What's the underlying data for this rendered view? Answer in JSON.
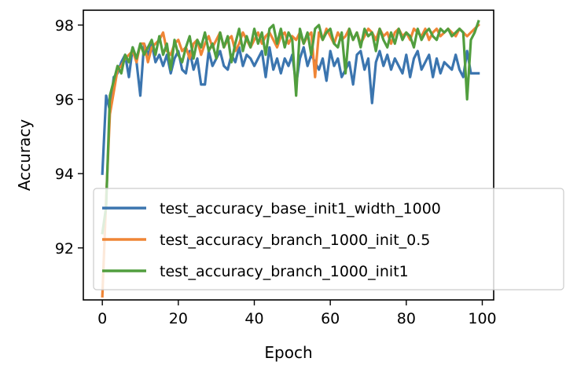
{
  "chart_data": {
    "type": "line",
    "title": "",
    "xlabel": "Epoch",
    "ylabel": "Accuracy",
    "xlim": [
      -5,
      103
    ],
    "ylim": [
      90.6,
      98.4
    ],
    "xticks": [
      0,
      20,
      40,
      60,
      80,
      100
    ],
    "yticks": [
      92,
      94,
      96,
      98
    ],
    "xtick_labels": [
      "0",
      "20",
      "40",
      "60",
      "80",
      "100"
    ],
    "ytick_labels": [
      "92",
      "94",
      "96",
      "98"
    ],
    "grid": false,
    "legend_position": "lower-left, overlapping plot edge",
    "x": [
      0,
      1,
      2,
      3,
      4,
      5,
      6,
      7,
      8,
      9,
      10,
      11,
      12,
      13,
      14,
      15,
      16,
      17,
      18,
      19,
      20,
      21,
      22,
      23,
      24,
      25,
      26,
      27,
      28,
      29,
      30,
      31,
      32,
      33,
      34,
      35,
      36,
      37,
      38,
      39,
      40,
      41,
      42,
      43,
      44,
      45,
      46,
      47,
      48,
      49,
      50,
      51,
      52,
      53,
      54,
      55,
      56,
      57,
      58,
      59,
      60,
      61,
      62,
      63,
      64,
      65,
      66,
      67,
      68,
      69,
      70,
      71,
      72,
      73,
      74,
      75,
      76,
      77,
      78,
      79,
      80,
      81,
      82,
      83,
      84,
      85,
      86,
      87,
      88,
      89,
      90,
      91,
      92,
      93,
      94,
      95,
      96,
      97,
      98,
      99
    ],
    "series": [
      {
        "name": "test_accuracy_base_init1_width_1000",
        "color": "#3b75af",
        "values": [
          94.0,
          96.1,
          95.7,
          96.6,
          96.7,
          97.0,
          97.2,
          96.6,
          97.4,
          97.0,
          96.1,
          97.5,
          97.2,
          97.5,
          97.0,
          97.2,
          96.9,
          97.2,
          96.7,
          97.1,
          97.3,
          96.8,
          96.7,
          97.3,
          96.8,
          97.1,
          96.4,
          96.4,
          97.3,
          96.9,
          97.1,
          97.3,
          96.9,
          96.8,
          97.2,
          97.0,
          97.4,
          96.9,
          97.2,
          97.1,
          96.9,
          97.1,
          97.3,
          96.6,
          97.4,
          96.8,
          97.1,
          96.7,
          97.1,
          96.9,
          97.2,
          96.4,
          97.1,
          97.4,
          96.9,
          97.2,
          97.0,
          96.8,
          97.1,
          96.5,
          97.3,
          96.9,
          97.1,
          96.6,
          96.8,
          97.0,
          96.4,
          97.2,
          97.3,
          96.8,
          97.1,
          95.9,
          97.0,
          97.3,
          96.9,
          97.2,
          96.8,
          97.1,
          96.9,
          96.7,
          97.2,
          96.6,
          97.1,
          97.3,
          96.8,
          97.0,
          97.2,
          96.6,
          97.1,
          96.7,
          97.0,
          96.9,
          96.8,
          97.2,
          96.8,
          96.6,
          97.3,
          96.7,
          96.7,
          96.7
        ]
      },
      {
        "name": "test_accuracy_branch_1000_init_0.5",
        "color": "#ef8536",
        "values": [
          90.7,
          93.3,
          95.6,
          96.2,
          96.8,
          96.9,
          97.1,
          97.2,
          97.3,
          97.0,
          97.5,
          97.5,
          97.0,
          97.4,
          97.5,
          97.6,
          97.8,
          97.3,
          97.2,
          97.5,
          97.6,
          97.3,
          97.4,
          97.1,
          97.5,
          97.6,
          97.2,
          97.5,
          97.7,
          97.4,
          97.6,
          97.8,
          97.4,
          97.6,
          97.7,
          97.3,
          97.5,
          97.8,
          97.6,
          97.4,
          97.6,
          97.8,
          97.5,
          97.7,
          97.8,
          97.6,
          97.4,
          97.7,
          97.8,
          97.5,
          97.7,
          97.6,
          97.8,
          97.5,
          97.7,
          97.8,
          96.6,
          97.8,
          97.6,
          97.9,
          97.7,
          97.5,
          97.8,
          97.6,
          97.7,
          97.9,
          97.6,
          97.8,
          97.5,
          97.7,
          97.9,
          97.8,
          97.6,
          97.9,
          97.7,
          97.8,
          97.5,
          97.8,
          97.9,
          97.7,
          97.8,
          97.6,
          97.9,
          97.8,
          97.7,
          97.9,
          97.6,
          97.8,
          97.9,
          97.7,
          97.8,
          97.9,
          97.8,
          97.7,
          97.9,
          97.8,
          97.7,
          97.8,
          97.9,
          98.0
        ]
      },
      {
        "name": "test_accuracy_branch_1000_init1",
        "color": "#519e3e",
        "values": [
          92.4,
          93.1,
          96.1,
          96.5,
          96.9,
          96.7,
          97.2,
          97.0,
          97.4,
          97.1,
          97.5,
          97.2,
          97.4,
          97.6,
          97.2,
          97.7,
          97.2,
          97.5,
          96.8,
          97.6,
          97.2,
          97.0,
          97.4,
          97.7,
          97.1,
          97.6,
          97.4,
          97.8,
          97.3,
          97.5,
          97.1,
          97.8,
          97.4,
          97.7,
          97.0,
          97.5,
          97.9,
          97.3,
          97.7,
          97.4,
          97.9,
          97.5,
          97.8,
          97.2,
          97.9,
          98.0,
          97.5,
          97.9,
          97.4,
          97.8,
          97.6,
          96.1,
          97.9,
          97.5,
          97.8,
          97.2,
          97.9,
          98.0,
          97.6,
          97.8,
          97.9,
          97.5,
          97.4,
          97.8,
          96.7,
          97.9,
          97.6,
          97.8,
          97.4,
          97.9,
          97.7,
          97.8,
          97.3,
          97.9,
          97.6,
          97.4,
          97.8,
          97.5,
          97.9,
          97.6,
          97.8,
          97.7,
          97.4,
          97.9,
          97.6,
          97.8,
          97.9,
          97.7,
          97.6,
          97.9,
          97.8,
          97.9,
          97.7,
          97.8,
          97.9,
          97.8,
          96.0,
          97.6,
          97.8,
          98.1
        ]
      }
    ]
  }
}
